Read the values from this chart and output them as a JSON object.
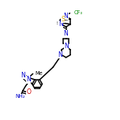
{
  "bg_color": "#ffffff",
  "atom_color": "#000000",
  "N_color": "#0000cc",
  "O_color": "#cc0000",
  "S_color": "#ddaa00",
  "F_color": "#008800",
  "line_width": 1.1,
  "doff": 0.008,
  "figsize": [
    1.52,
    1.52
  ],
  "dpi": 100,
  "xlim": [
    0.0,
    1.0
  ],
  "ylim": [
    0.0,
    1.0
  ]
}
